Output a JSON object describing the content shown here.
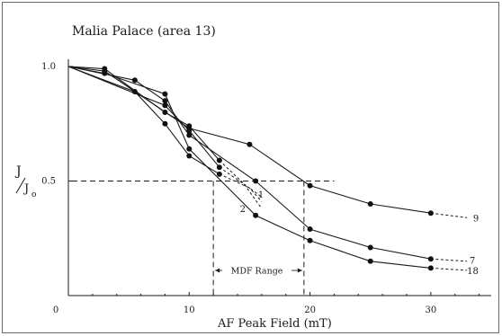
{
  "chart_data": {
    "type": "line",
    "title": "Malia Palace (area 13)",
    "xlabel": "AF  Peak Field     (mT)",
    "ylabel": {
      "main": "J",
      "sub": "J",
      "subscript": "o"
    },
    "xlim": [
      0,
      35
    ],
    "ylim": [
      0,
      1.0
    ],
    "x_ticks": [
      0,
      10,
      20,
      30
    ],
    "x_tick_labels": [
      "0",
      "10",
      "20",
      "30"
    ],
    "y_ticks": [
      0.5,
      1.0
    ],
    "y_tick_labels": [
      "0.5",
      "1.0"
    ],
    "grid": false,
    "series": [
      {
        "name": "9",
        "points": [
          [
            0,
            1.0
          ],
          [
            3,
            0.98
          ],
          [
            10,
            0.73
          ],
          [
            15,
            0.66
          ],
          [
            20,
            0.48
          ],
          [
            25,
            0.4
          ],
          [
            30,
            0.36
          ]
        ],
        "dashed_tail": [
          [
            30,
            0.36
          ],
          [
            33,
            0.34
          ]
        ]
      },
      {
        "name": "7",
        "points": [
          [
            0,
            1.0
          ],
          [
            5.5,
            0.94
          ],
          [
            8,
            0.85
          ],
          [
            10,
            0.7
          ],
          [
            15.5,
            0.5
          ],
          [
            20,
            0.29
          ],
          [
            25,
            0.21
          ],
          [
            30,
            0.16
          ]
        ],
        "dashed_tail": [
          [
            30,
            0.16
          ],
          [
            33,
            0.15
          ]
        ]
      },
      {
        "name": "18",
        "points": [
          [
            0,
            1.0
          ],
          [
            3,
            0.97
          ],
          [
            8,
            0.88
          ],
          [
            10,
            0.64
          ],
          [
            15.5,
            0.35
          ],
          [
            20,
            0.24
          ],
          [
            25,
            0.15
          ],
          [
            30,
            0.12
          ]
        ],
        "dashed_tail": [
          [
            30,
            0.12
          ],
          [
            33,
            0.11
          ]
        ]
      },
      {
        "name": "1",
        "points": [
          [
            0,
            1.0
          ],
          [
            5.5,
            0.89
          ],
          [
            8,
            0.75
          ],
          [
            10,
            0.61
          ],
          [
            12.5,
            0.53
          ]
        ],
        "dashed_tail": [
          [
            12.5,
            0.53
          ],
          [
            15,
            0.47
          ],
          [
            16,
            0.43
          ]
        ]
      },
      {
        "name": "2",
        "points": [
          [
            0,
            1.0
          ],
          [
            3,
            0.99
          ],
          [
            8,
            0.8
          ],
          [
            10,
            0.74
          ],
          [
            12.5,
            0.59
          ]
        ],
        "dashed_tail": [
          [
            12.5,
            0.59
          ],
          [
            14.5,
            0.49
          ],
          [
            16,
            0.38
          ]
        ]
      },
      {
        "name": "",
        "points": [
          [
            0,
            1.0
          ],
          [
            8,
            0.83
          ],
          [
            10,
            0.72
          ],
          [
            12.5,
            0.56
          ]
        ],
        "dashed_tail": [
          [
            12.5,
            0.56
          ],
          [
            15,
            0.47
          ],
          [
            16,
            0.41
          ]
        ]
      }
    ],
    "annotations": {
      "half_line_y": 0.5,
      "mdf_range_x": [
        12,
        19.5
      ],
      "mdf_label": "MDF   Range"
    }
  }
}
